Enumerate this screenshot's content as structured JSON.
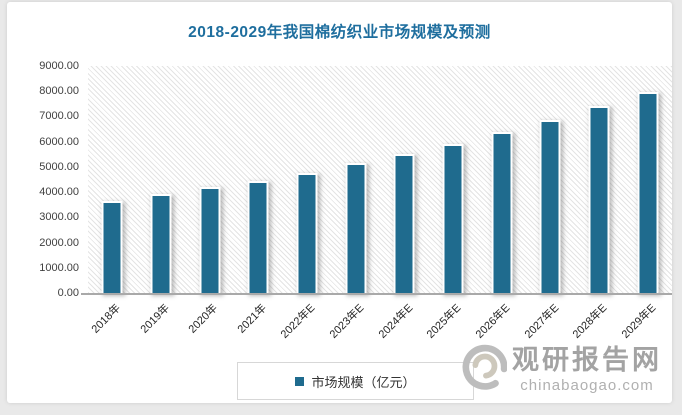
{
  "title": "2018-2029年我国棉纺织业市场规模及预测",
  "chart_data": {
    "type": "bar",
    "title": "2018-2029年我国棉纺织业市场规模及预测",
    "categories": [
      "2018年",
      "2019年",
      "2020年",
      "2021年",
      "2022年E",
      "2023年E",
      "2024年E",
      "2025年E",
      "2026年E",
      "2027年E",
      "2028年E",
      "2029年E"
    ],
    "series": [
      {
        "name": "市场规模（亿元）",
        "values": [
          3640,
          3940,
          4200,
          4460,
          4770,
          5140,
          5520,
          5920,
          6390,
          6860,
          7400,
          7950
        ]
      }
    ],
    "xlabel": "",
    "ylabel": "",
    "ylim": [
      0,
      9000
    ],
    "ytick_labels": [
      "9000.00",
      "8000.00",
      "7000.00",
      "6000.00",
      "5000.00",
      "4000.00",
      "3000.00",
      "2000.00",
      "1000.00",
      "0.00"
    ],
    "grid": false,
    "legend_position": "bottom",
    "bar_color": "#1f6b8e",
    "title_color": "#1e6e9e",
    "plot_background": "diagonal-hatch"
  },
  "legend": {
    "label": "市场规模（亿元）",
    "marker_color": "#1f6b8e"
  },
  "watermark": {
    "name": "观研报告网",
    "domain": "chinabaogao.com"
  }
}
